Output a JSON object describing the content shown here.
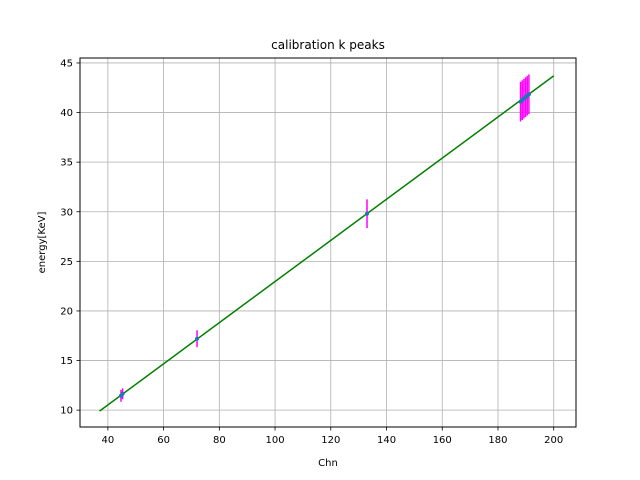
{
  "chart_data": {
    "type": "scatter",
    "title": "calibration k peaks",
    "xlabel": "Chn",
    "ylabel": "energy[KeV]",
    "xlim": [
      30,
      208
    ],
    "ylim": [
      8.3,
      45.5
    ],
    "xticks": [
      40,
      60,
      80,
      100,
      120,
      140,
      160,
      180,
      200
    ],
    "yticks": [
      10,
      15,
      20,
      25,
      30,
      35,
      40,
      45
    ],
    "grid": true,
    "fit_line": {
      "x": [
        37,
        200
      ],
      "y": [
        9.9,
        43.7
      ],
      "color": "#008000"
    },
    "errorbar_color": "#ff00ff",
    "marker_color": "#1f77b4",
    "points": [
      {
        "x": 44.7,
        "y": 11.45,
        "yerr": 0.6
      },
      {
        "x": 45.3,
        "y": 11.65,
        "yerr": 0.55
      },
      {
        "x": 72,
        "y": 17.2,
        "yerr": 0.85
      },
      {
        "x": 133,
        "y": 29.8,
        "yerr": 1.45
      },
      {
        "x": 188.1,
        "y": 41.1,
        "yerr": 2.0
      },
      {
        "x": 188.7,
        "y": 41.25,
        "yerr": 2.0
      },
      {
        "x": 189.3,
        "y": 41.4,
        "yerr": 2.0
      },
      {
        "x": 189.9,
        "y": 41.55,
        "yerr": 2.0
      },
      {
        "x": 190.5,
        "y": 41.7,
        "yerr": 2.0
      },
      {
        "x": 191.1,
        "y": 41.85,
        "yerr": 2.0
      }
    ]
  }
}
